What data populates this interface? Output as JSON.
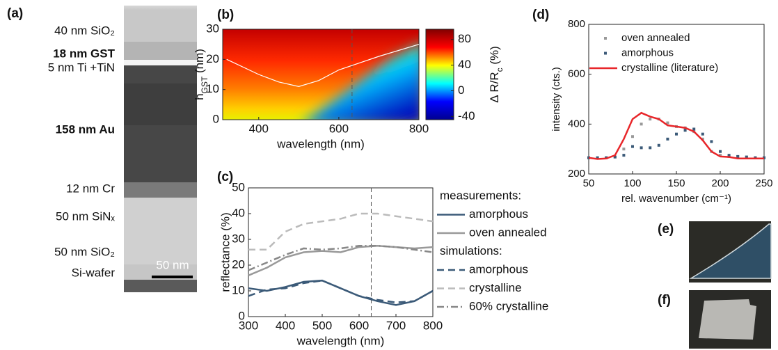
{
  "panel_labels": [
    "(a)",
    "(b)",
    "(c)",
    "(d)",
    "(e)",
    "(f)"
  ],
  "tem": {
    "layers": [
      {
        "label": "40 nm SiO₂",
        "bold": false
      },
      {
        "label": "18 nm GST",
        "bold": true
      },
      {
        "label": "5 nm Ti +TiN",
        "bold": false
      },
      {
        "label": "158 nm Au",
        "bold": true
      },
      {
        "label": "12 nm Cr",
        "bold": false
      },
      {
        "label": "50 nm SiNₓ",
        "bold": false
      },
      {
        "label": "50 nm SiO₂",
        "bold": false
      },
      {
        "label": "Si-wafer",
        "bold": false
      }
    ],
    "scale_bar": "50 nm"
  },
  "chart_data": [
    {
      "type": "heatmap",
      "xlabel": "wavelength (nm)",
      "ylabel": [
        "h",
        "GST",
        " (nm)"
      ],
      "xlim": [
        310,
        800
      ],
      "xticks": [
        400,
        600,
        800
      ],
      "ylim": [
        0,
        30
      ],
      "yticks": [
        0,
        10,
        20,
        30
      ],
      "colorbar_label": [
        "Δ R/R",
        "c",
        " (%)"
      ],
      "clim": [
        -45,
        96
      ],
      "cticks": [
        -40,
        0,
        40,
        80
      ],
      "colormap": [
        "#00008f",
        "#0000ff",
        "#00ffff",
        "#ffff00",
        "#ff0000",
        "#800000"
      ],
      "contour": {
        "color": "#ffffff",
        "x": [
          320,
          400,
          450,
          500,
          550,
          600,
          700,
          800
        ],
        "values": [
          20,
          15,
          12.5,
          11,
          13,
          16.5,
          21,
          25
        ]
      },
      "vline": 633
    },
    {
      "type": "line",
      "xlabel": "wavelength (nm)",
      "ylabel": "reflectance (%)",
      "xlim": [
        300,
        800
      ],
      "xticks": [
        300,
        400,
        500,
        600,
        700,
        800
      ],
      "ylim": [
        0,
        50
      ],
      "yticks": [
        0,
        10,
        20,
        30,
        40,
        50
      ],
      "legend": "outside-right",
      "legend_titles": [
        "measurements:",
        "simulations:"
      ],
      "vline": 633,
      "x": [
        300,
        350,
        400,
        450,
        500,
        550,
        600,
        650,
        700,
        750,
        800
      ],
      "series": [
        {
          "name": "amorphous",
          "color": "#3b5a78",
          "style": "solid",
          "values": [
            11,
            10,
            11.5,
            13.5,
            14,
            11,
            8,
            6,
            4.5,
            6,
            10
          ]
        },
        {
          "name": "oven annealed",
          "color": "#999999",
          "style": "solid",
          "values": [
            16,
            19,
            23,
            25,
            25.5,
            25,
            27,
            27.5,
            27,
            26.5,
            27
          ]
        },
        {
          "name": "amorphous",
          "color": "#3b5a78",
          "style": "dashed",
          "values": [
            8,
            10.5,
            11,
            13,
            14,
            11,
            8,
            6.5,
            5.5,
            6,
            10
          ]
        },
        {
          "name": "crystalline",
          "color": "#bbbbbb",
          "style": "dashed",
          "values": [
            26,
            26,
            33,
            36,
            37,
            38,
            40,
            40,
            39,
            38,
            37
          ]
        },
        {
          "name": "60% crystalline",
          "color": "#888888",
          "style": "dashdot",
          "values": [
            18,
            21,
            24,
            26.5,
            26,
            26.5,
            27.5,
            27.5,
            27,
            26,
            25
          ]
        }
      ]
    },
    {
      "type": "line",
      "xlabel": "rel. wavenumber (cm⁻¹)",
      "ylabel": "intensity (cts.)",
      "xlim": [
        50,
        250
      ],
      "xticks": [
        50,
        100,
        150,
        200,
        250
      ],
      "ylim": [
        200,
        800
      ],
      "yticks": [
        200,
        400,
        600,
        800
      ],
      "legend": "upper-left",
      "x": [
        50,
        60,
        70,
        80,
        90,
        100,
        110,
        120,
        130,
        140,
        150,
        160,
        170,
        180,
        190,
        200,
        210,
        220,
        230,
        240,
        250
      ],
      "series": [
        {
          "name": "oven annealed",
          "color": "#999999",
          "style": "markers",
          "values": [
            265,
            265,
            265,
            268,
            300,
            350,
            400,
            420,
            420,
            405,
            390,
            385,
            370,
            340,
            290,
            275,
            270,
            270,
            268,
            265,
            265
          ]
        },
        {
          "name": "amorphous",
          "color": "#3b5a78",
          "style": "markers",
          "values": [
            265,
            265,
            265,
            268,
            275,
            310,
            305,
            305,
            315,
            340,
            360,
            375,
            380,
            360,
            330,
            290,
            275,
            270,
            268,
            265,
            265
          ]
        },
        {
          "name": "crystalline (literature)",
          "color": "#e8262a",
          "style": "solid",
          "values": [
            265,
            260,
            262,
            275,
            340,
            420,
            445,
            430,
            420,
            395,
            390,
            385,
            370,
            335,
            290,
            270,
            268,
            262,
            262,
            262,
            262
          ]
        }
      ]
    }
  ]
}
